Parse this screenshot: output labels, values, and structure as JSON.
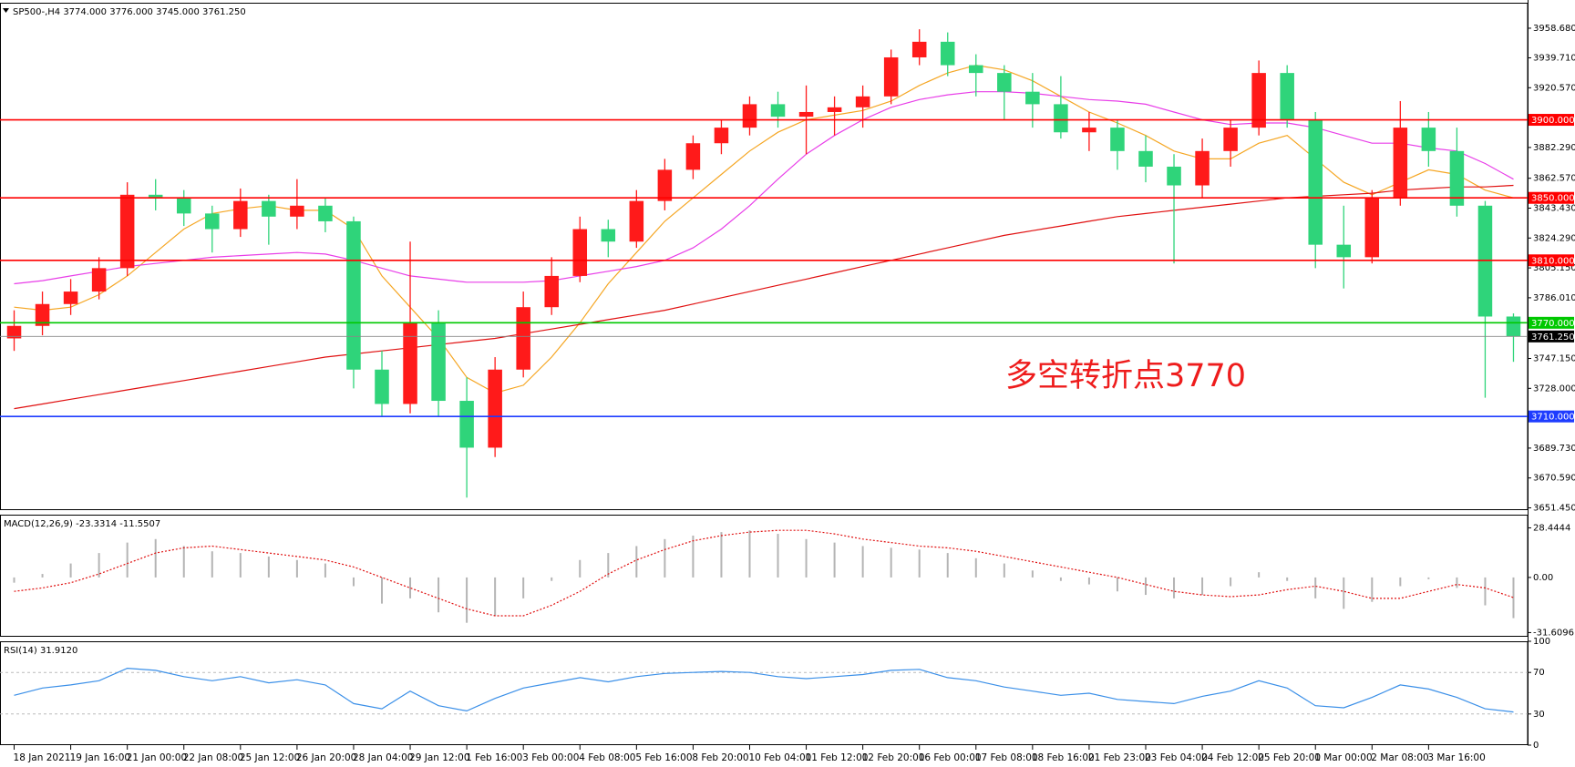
{
  "chart_data": [
    {
      "type": "candlestick",
      "title": "SP500-,H4  3774.000 3776.000 3745.000 3761.250",
      "annotation": "多空转折点3770",
      "annotation_color": "#ee1c1c",
      "up_color": "#ff1a1a",
      "down_color": "#2fd47a",
      "ylim": [
        3650,
        3975
      ],
      "yticks": [
        {
          "value": 3958.68,
          "label": "3958.680"
        },
        {
          "value": 3939.71,
          "label": "3939.710"
        },
        {
          "value": 3920.57,
          "label": "3920.570"
        },
        {
          "value": 3882.29,
          "label": "3882.290"
        },
        {
          "value": 3862.57,
          "label": "3862.570"
        },
        {
          "value": 3843.43,
          "label": "3843.430"
        },
        {
          "value": 3824.29,
          "label": "3824.290"
        },
        {
          "value": 3805.15,
          "label": "3805.150"
        },
        {
          "value": 3786.01,
          "label": "3786.010"
        },
        {
          "value": 3747.15,
          "label": "3747.150"
        },
        {
          "value": 3728,
          "label": "3728.000"
        },
        {
          "value": 3689.73,
          "label": "3689.730"
        },
        {
          "value": 3670.59,
          "label": "3670.590"
        },
        {
          "value": 3651.45,
          "label": "3651.450"
        }
      ],
      "categories": [
        "18 Jan 2021",
        null,
        "19 Jan 16:00",
        null,
        "21 Jan 00:00",
        null,
        "22 Jan 08:00",
        null,
        "25 Jan 12:00",
        null,
        "26 Jan 20:00",
        null,
        "28 Jan 04:00",
        null,
        "29 Jan 12:00",
        null,
        "1 Feb 16:00",
        null,
        "3 Feb 00:00",
        null,
        "4 Feb 08:00",
        null,
        "5 Feb 16:00",
        null,
        "8 Feb 20:00",
        null,
        "10 Feb 04:00",
        null,
        "11 Feb 12:00",
        null,
        "12 Feb 20:00",
        null,
        "16 Feb 00:00",
        null,
        "17 Feb 08:00",
        null,
        "18 Feb 16:00",
        null,
        "21 Feb 23:00",
        null,
        "23 Feb 04:00",
        null,
        "24 Feb 12:00",
        null,
        "25 Feb 20:00",
        null,
        "1 Mar 00:00",
        null,
        "2 Mar 08:00",
        null,
        "3 Mar 16:00",
        null,
        null,
        null
      ],
      "candles": [
        [
          3760,
          3778,
          3752,
          3768
        ],
        [
          3768,
          3790,
          3762,
          3782
        ],
        [
          3782,
          3798,
          3775,
          3790
        ],
        [
          3790,
          3812,
          3785,
          3805
        ],
        [
          3805,
          3860,
          3800,
          3852
        ],
        [
          3852,
          3862,
          3842,
          3850
        ],
        [
          3850,
          3855,
          3832,
          3840
        ],
        [
          3840,
          3845,
          3815,
          3830
        ],
        [
          3830,
          3856,
          3825,
          3848
        ],
        [
          3848,
          3852,
          3820,
          3838
        ],
        [
          3838,
          3862,
          3830,
          3845
        ],
        [
          3845,
          3850,
          3828,
          3835
        ],
        [
          3835,
          3838,
          3728,
          3740
        ],
        [
          3740,
          3752,
          3710,
          3718
        ],
        [
          3718,
          3822,
          3712,
          3770
        ],
        [
          3770,
          3778,
          3710,
          3720
        ],
        [
          3720,
          3735,
          3658,
          3690
        ],
        [
          3690,
          3748,
          3684,
          3740
        ],
        [
          3740,
          3790,
          3735,
          3780
        ],
        [
          3780,
          3812,
          3775,
          3800
        ],
        [
          3800,
          3838,
          3796,
          3830
        ],
        [
          3830,
          3836,
          3812,
          3822
        ],
        [
          3822,
          3855,
          3818,
          3848
        ],
        [
          3848,
          3875,
          3842,
          3868
        ],
        [
          3868,
          3890,
          3862,
          3885
        ],
        [
          3885,
          3900,
          3878,
          3895
        ],
        [
          3895,
          3915,
          3890,
          3910
        ],
        [
          3910,
          3918,
          3895,
          3902
        ],
        [
          3902,
          3922,
          3878,
          3905
        ],
        [
          3905,
          3915,
          3890,
          3908
        ],
        [
          3908,
          3922,
          3895,
          3915
        ],
        [
          3915,
          3945,
          3910,
          3940
        ],
        [
          3940,
          3958,
          3935,
          3950
        ],
        [
          3950,
          3956,
          3928,
          3935
        ],
        [
          3935,
          3942,
          3915,
          3930
        ],
        [
          3930,
          3935,
          3900,
          3918
        ],
        [
          3918,
          3930,
          3895,
          3910
        ],
        [
          3910,
          3928,
          3888,
          3892
        ],
        [
          3892,
          3905,
          3880,
          3895
        ],
        [
          3895,
          3900,
          3868,
          3880
        ],
        [
          3880,
          3890,
          3860,
          3870
        ],
        [
          3870,
          3878,
          3808,
          3858
        ],
        [
          3858,
          3888,
          3850,
          3880
        ],
        [
          3880,
          3900,
          3870,
          3895
        ],
        [
          3895,
          3938,
          3890,
          3930
        ],
        [
          3930,
          3935,
          3895,
          3900
        ],
        [
          3900,
          3905,
          3805,
          3820
        ],
        [
          3820,
          3845,
          3792,
          3812
        ],
        [
          3812,
          3855,
          3808,
          3850
        ],
        [
          3850,
          3912,
          3845,
          3895
        ],
        [
          3895,
          3905,
          3870,
          3880
        ],
        [
          3880,
          3895,
          3838,
          3845
        ],
        [
          3845,
          3848,
          3722,
          3774
        ],
        [
          3774,
          3776,
          3745,
          3761.25
        ]
      ],
      "lines": [
        {
          "color": "#f5a623",
          "values": [
            3780,
            3778,
            3780,
            3788,
            3800,
            3815,
            3830,
            3840,
            3843,
            3845,
            3842,
            3842,
            3830,
            3800,
            3780,
            3760,
            3735,
            3725,
            3730,
            3748,
            3770,
            3795,
            3815,
            3835,
            3850,
            3865,
            3880,
            3892,
            3900,
            3903,
            3906,
            3912,
            3922,
            3930,
            3935,
            3932,
            3925,
            3915,
            3905,
            3898,
            3890,
            3880,
            3875,
            3875,
            3885,
            3890,
            3875,
            3860,
            3852,
            3860,
            3868,
            3865,
            3855,
            3850
          ]
        },
        {
          "color": "#e83ee8",
          "values": [
            3795,
            3797,
            3800,
            3803,
            3806,
            3808,
            3810,
            3812,
            3813,
            3814,
            3815,
            3814,
            3810,
            3805,
            3800,
            3798,
            3796,
            3796,
            3796,
            3797,
            3800,
            3803,
            3806,
            3810,
            3818,
            3830,
            3845,
            3862,
            3878,
            3890,
            3900,
            3908,
            3913,
            3916,
            3918,
            3918,
            3917,
            3915,
            3913,
            3912,
            3910,
            3905,
            3900,
            3897,
            3898,
            3898,
            3895,
            3890,
            3885,
            3885,
            3882,
            3880,
            3872,
            3862
          ]
        },
        {
          "color": "#e01010",
          "values": [
            3715,
            3718,
            3721,
            3724,
            3727,
            3730,
            3733,
            3736,
            3739,
            3742,
            3745,
            3748,
            3750,
            3752,
            3754,
            3756,
            3758,
            3760,
            3763,
            3766,
            3769,
            3772,
            3775,
            3778,
            3782,
            3786,
            3790,
            3794,
            3798,
            3802,
            3806,
            3810,
            3814,
            3818,
            3822,
            3826,
            3829,
            3832,
            3835,
            3838,
            3840,
            3842,
            3844,
            3846,
            3848,
            3850,
            3851,
            3852,
            3853,
            3855,
            3856,
            3857,
            3857,
            3858
          ]
        }
      ],
      "levels": [
        {
          "value": 3900,
          "label": "3900.000",
          "color": "#ff0000"
        },
        {
          "value": 3850,
          "label": "3850.000",
          "color": "#ff0000"
        },
        {
          "value": 3810,
          "label": "3810.000",
          "color": "#ff0000"
        },
        {
          "value": 3770,
          "label": "3770.000",
          "color": "#00c800"
        },
        {
          "value": 3761.25,
          "label": "3761.250",
          "color": "#000000"
        },
        {
          "value": 3710,
          "label": "3710.000",
          "color": "#1e3cff"
        }
      ]
    },
    {
      "type": "macd",
      "title": "MACD(12,26,9) -23.3314 -11.5507",
      "ylim": [
        -34,
        36
      ],
      "yticks": [
        28.4444,
        {
          "value": 0,
          "label": "0.00"
        },
        -31.6096
      ],
      "histogram_color": "#b4b4b4",
      "signal_color": "#e01010",
      "histogram": [
        -3,
        2,
        8,
        14,
        20,
        22,
        18,
        15,
        14,
        12,
        10,
        8,
        -5,
        -15,
        -12,
        -20,
        -26,
        -22,
        -12,
        -2,
        10,
        14,
        18,
        22,
        24,
        26,
        27,
        25,
        22,
        20,
        18,
        17,
        16,
        14,
        11,
        8,
        4,
        -2,
        -4,
        -8,
        -10,
        -12,
        -10,
        -5,
        3,
        -2,
        -12,
        -18,
        -14,
        -5,
        -1,
        -6,
        -16,
        -23.3314
      ],
      "signal": [
        -8,
        -6,
        -3,
        2,
        8,
        14,
        17,
        18,
        16,
        14,
        12,
        10,
        6,
        0,
        -6,
        -12,
        -18,
        -22,
        -22,
        -16,
        -8,
        2,
        10,
        16,
        21,
        24,
        26,
        27,
        27,
        25,
        22,
        20,
        18,
        17,
        15,
        12,
        9,
        6,
        3,
        0,
        -4,
        -8,
        -10,
        -11,
        -10,
        -7,
        -5,
        -8,
        -12,
        -12,
        -8,
        -4,
        -6,
        -11.5507
      ]
    },
    {
      "type": "line",
      "title": "RSI(14) 31.9120",
      "ylim": [
        0,
        100
      ],
      "yticks": [
        100,
        70,
        30,
        0
      ],
      "levels": [
        70,
        30
      ],
      "color": "#3a8fe8",
      "values": [
        48,
        55,
        58,
        62,
        74,
        72,
        66,
        62,
        66,
        60,
        63,
        58,
        40,
        35,
        52,
        38,
        33,
        45,
        55,
        60,
        65,
        61,
        66,
        69,
        70,
        71,
        70,
        66,
        64,
        66,
        68,
        72,
        73,
        65,
        62,
        56,
        52,
        48,
        50,
        44,
        42,
        40,
        47,
        52,
        62,
        55,
        38,
        36,
        46,
        58,
        54,
        46,
        35,
        31.912
      ]
    }
  ]
}
